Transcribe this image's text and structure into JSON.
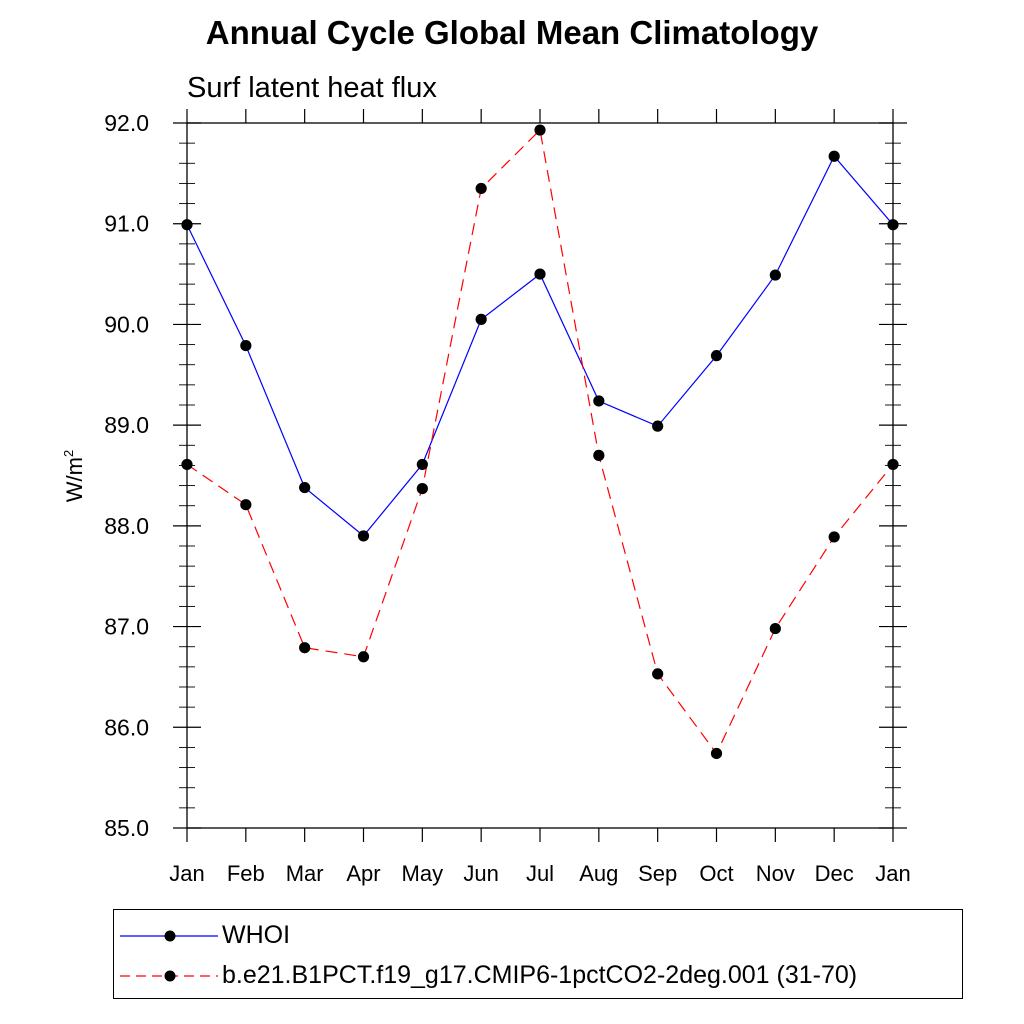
{
  "chart_data": {
    "type": "line",
    "title": "Annual Cycle Global Mean Climatology",
    "subtitle": "Surf latent heat flux",
    "xlabel": "",
    "ylabel": "W/m",
    "ylabel_sup": "2",
    "categories": [
      "Jan",
      "Feb",
      "Mar",
      "Apr",
      "May",
      "Jun",
      "Jul",
      "Aug",
      "Sep",
      "Oct",
      "Nov",
      "Dec",
      "Jan"
    ],
    "ylim": [
      85.0,
      92.0
    ],
    "yticks": [
      "85.0",
      "86.0",
      "87.0",
      "88.0",
      "89.0",
      "90.0",
      "91.0",
      "92.0"
    ],
    "grid": false,
    "series": [
      {
        "name": "WHOI",
        "color": "#0000ff",
        "dash": "solid",
        "values": [
          90.99,
          89.79,
          88.38,
          87.9,
          88.61,
          90.05,
          90.5,
          89.24,
          88.99,
          89.69,
          90.49,
          91.67,
          90.99
        ]
      },
      {
        "name": "b.e21.B1PCT.f19_g17.CMIP6-1pctCO2-2deg.001 (31-70)",
        "color": "#ff0000",
        "dash": "dashed",
        "values": [
          88.61,
          88.21,
          86.79,
          86.7,
          88.37,
          91.35,
          91.93,
          88.7,
          86.53,
          85.74,
          86.98,
          87.89,
          88.61
        ]
      }
    ],
    "legend_position": "bottom"
  }
}
